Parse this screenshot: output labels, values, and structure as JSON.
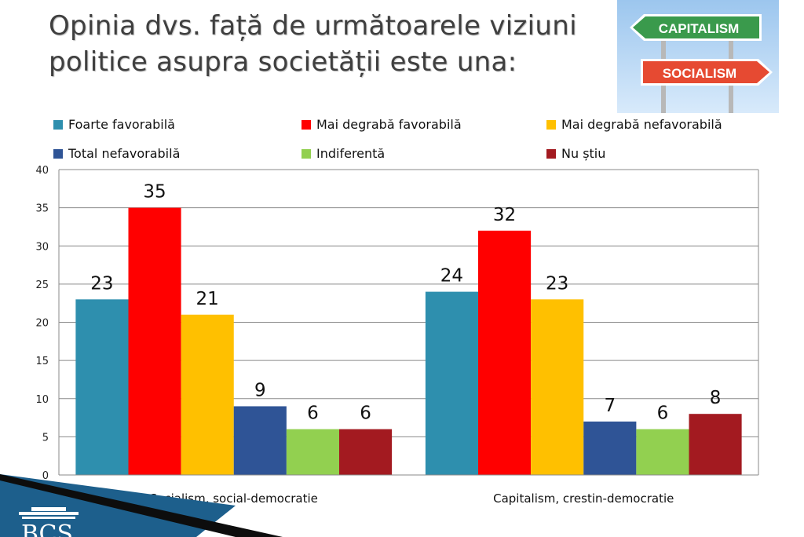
{
  "title": {
    "line1": "Opinia dvs. față de următoarele viziuni",
    "line2": "politice asupra societății este una:"
  },
  "picture": {
    "sign_top": "CAPITALISM",
    "sign_bottom": "SOCIALISM"
  },
  "footer": {
    "logo_text": "BCS"
  },
  "colors": {
    "background_sky": "#b9d7f2",
    "sign_green": "#3a9a4c",
    "sign_red": "#e64a32",
    "grid": "#8a8a8a",
    "footer_blue": "#1d5f8c"
  },
  "chart_data": {
    "type": "bar",
    "categories": [
      "Socialism, social-democratie",
      "Capitalism, crestin-democratie"
    ],
    "ylim": [
      0,
      40
    ],
    "yticks": [
      0,
      5,
      10,
      15,
      20,
      25,
      30,
      35,
      40
    ],
    "grid": true,
    "legend_position": "top",
    "series": [
      {
        "name": "Foarte favorabilă",
        "color": "#2e8fae",
        "values": [
          23,
          24
        ]
      },
      {
        "name": "Mai degrabă favorabilă",
        "color": "#ff0000",
        "values": [
          35,
          32
        ]
      },
      {
        "name": "Mai degrabă nefavorabilă",
        "color": "#ffc000",
        "values": [
          21,
          23
        ]
      },
      {
        "name": "Total nefavorabilă",
        "color": "#2f5496",
        "values": [
          9,
          7
        ]
      },
      {
        "name": "Indiferentă",
        "color": "#92d050",
        "values": [
          6,
          6
        ]
      },
      {
        "name": "Nu știu",
        "color": "#a31a20",
        "values": [
          6,
          8
        ]
      }
    ]
  }
}
